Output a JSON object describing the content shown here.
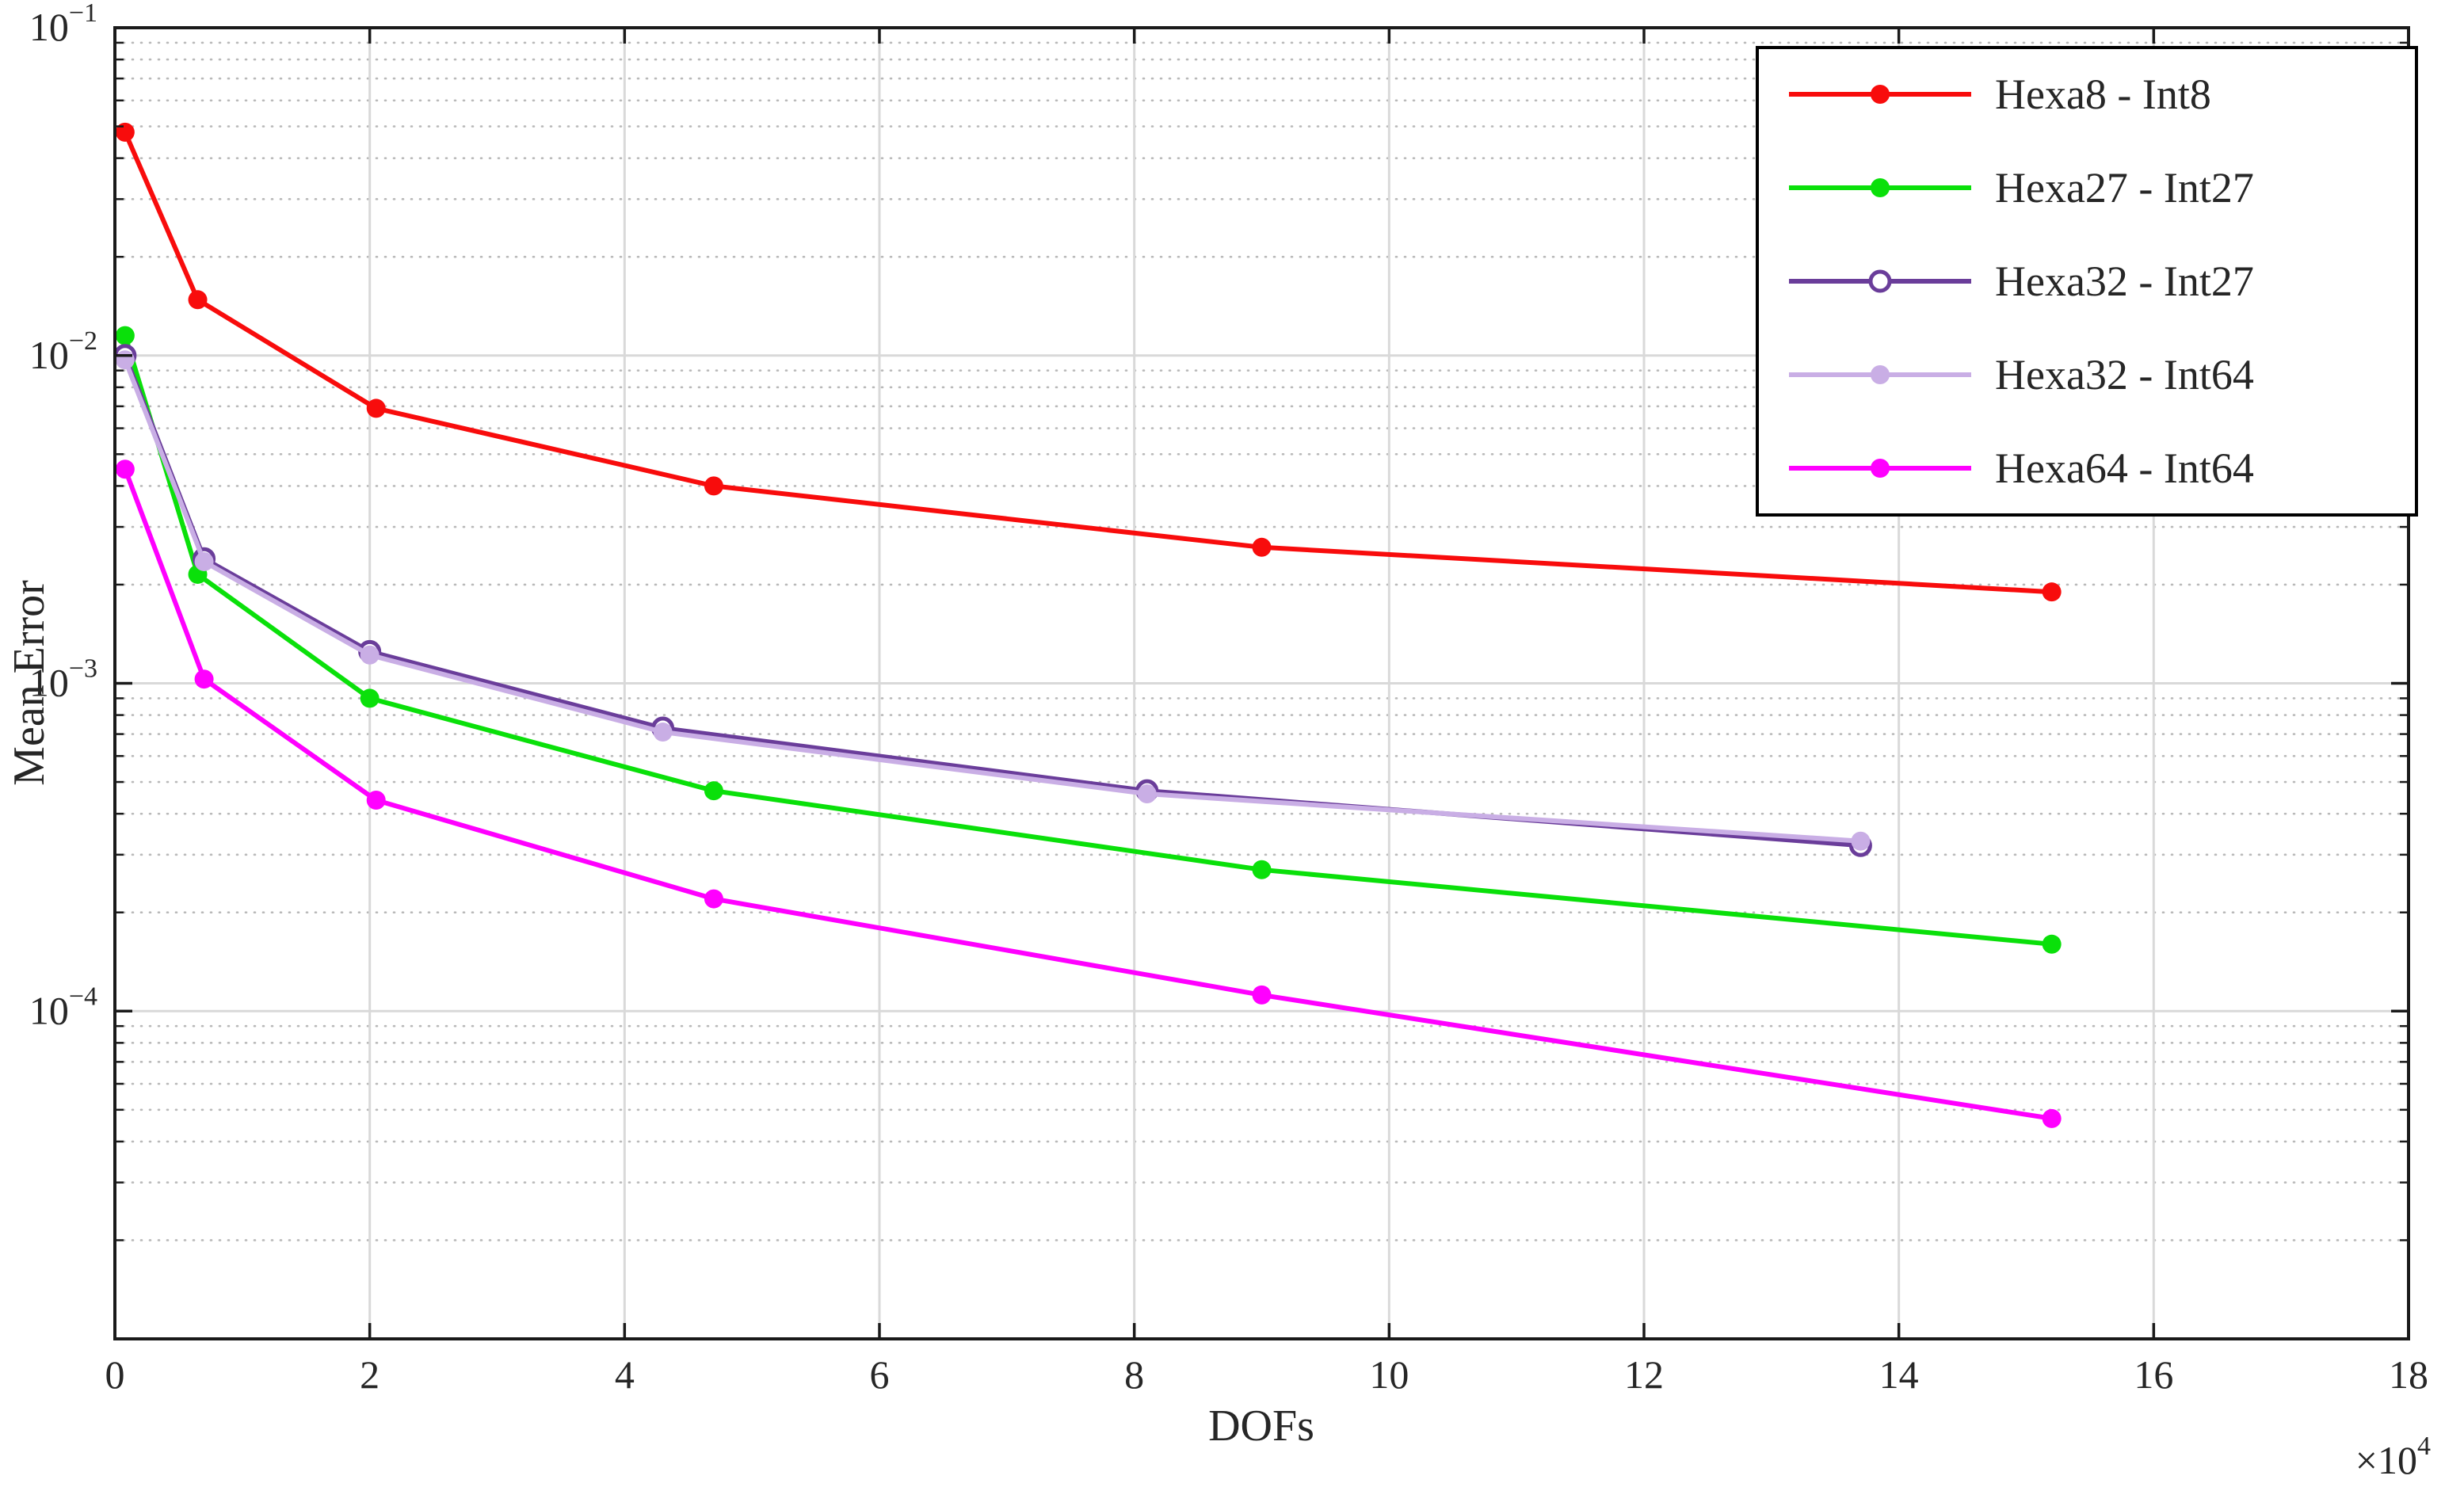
{
  "figure": {
    "background": "#ffffff",
    "axis_color": "#1a1a1a",
    "text_color": "#262626"
  },
  "chart_data": {
    "type": "line",
    "title": "",
    "xlabel": "DOFs",
    "ylabel": "Mean Error",
    "x_multiplier": {
      "base": "×10",
      "exp": "4"
    },
    "xlim": [
      0,
      18
    ],
    "ylim": [
      1e-05,
      0.1
    ],
    "yscale": "log",
    "xticks": [
      0,
      2,
      4,
      6,
      8,
      10,
      12,
      14,
      16,
      18
    ],
    "ytick_exponents": [
      -1,
      -2,
      -3,
      -4
    ],
    "grid": {
      "major": true,
      "minor_dotted_horizontal": true,
      "major_color": "#d9d9d9",
      "minor_color": "#b9b9b9"
    },
    "legend": {
      "position": "top-right",
      "border_color": "#000000",
      "background": "#ffffff"
    },
    "series": [
      {
        "name": "Hexa8 - Int8",
        "color": "#f80c0c",
        "marker": "filled",
        "x": [
          0.08,
          0.65,
          2.05,
          4.7,
          9.0,
          15.2
        ],
        "y": [
          0.048,
          0.0148,
          0.0069,
          0.004,
          0.0026,
          0.0019
        ]
      },
      {
        "name": "Hexa27 - Int27",
        "color": "#0ae00a",
        "marker": "filled",
        "x": [
          0.08,
          0.65,
          2.0,
          4.7,
          9.0,
          15.2
        ],
        "y": [
          0.0115,
          0.00215,
          0.0009,
          0.00047,
          0.00027,
          0.00016
        ]
      },
      {
        "name": "Hexa32 - Int27",
        "color": "#6a3d9a",
        "marker": "open",
        "x": [
          0.08,
          0.7,
          2.0,
          4.3,
          8.1,
          13.7
        ],
        "y": [
          0.01,
          0.0024,
          0.00125,
          0.00073,
          0.00047,
          0.00032
        ]
      },
      {
        "name": "Hexa32 - Int64",
        "color": "#c9aee5",
        "marker": "filled",
        "x": [
          0.08,
          0.7,
          2.0,
          4.3,
          8.1,
          13.7
        ],
        "y": [
          0.0097,
          0.00235,
          0.00122,
          0.00071,
          0.00046,
          0.00033
        ]
      },
      {
        "name": "Hexa64 - Int64",
        "color": "#ff00ff",
        "marker": "filled",
        "x": [
          0.08,
          0.7,
          2.05,
          4.7,
          9.0,
          15.2
        ],
        "y": [
          0.0045,
          0.00103,
          0.00044,
          0.00022,
          0.000112,
          4.7e-05
        ]
      }
    ]
  }
}
